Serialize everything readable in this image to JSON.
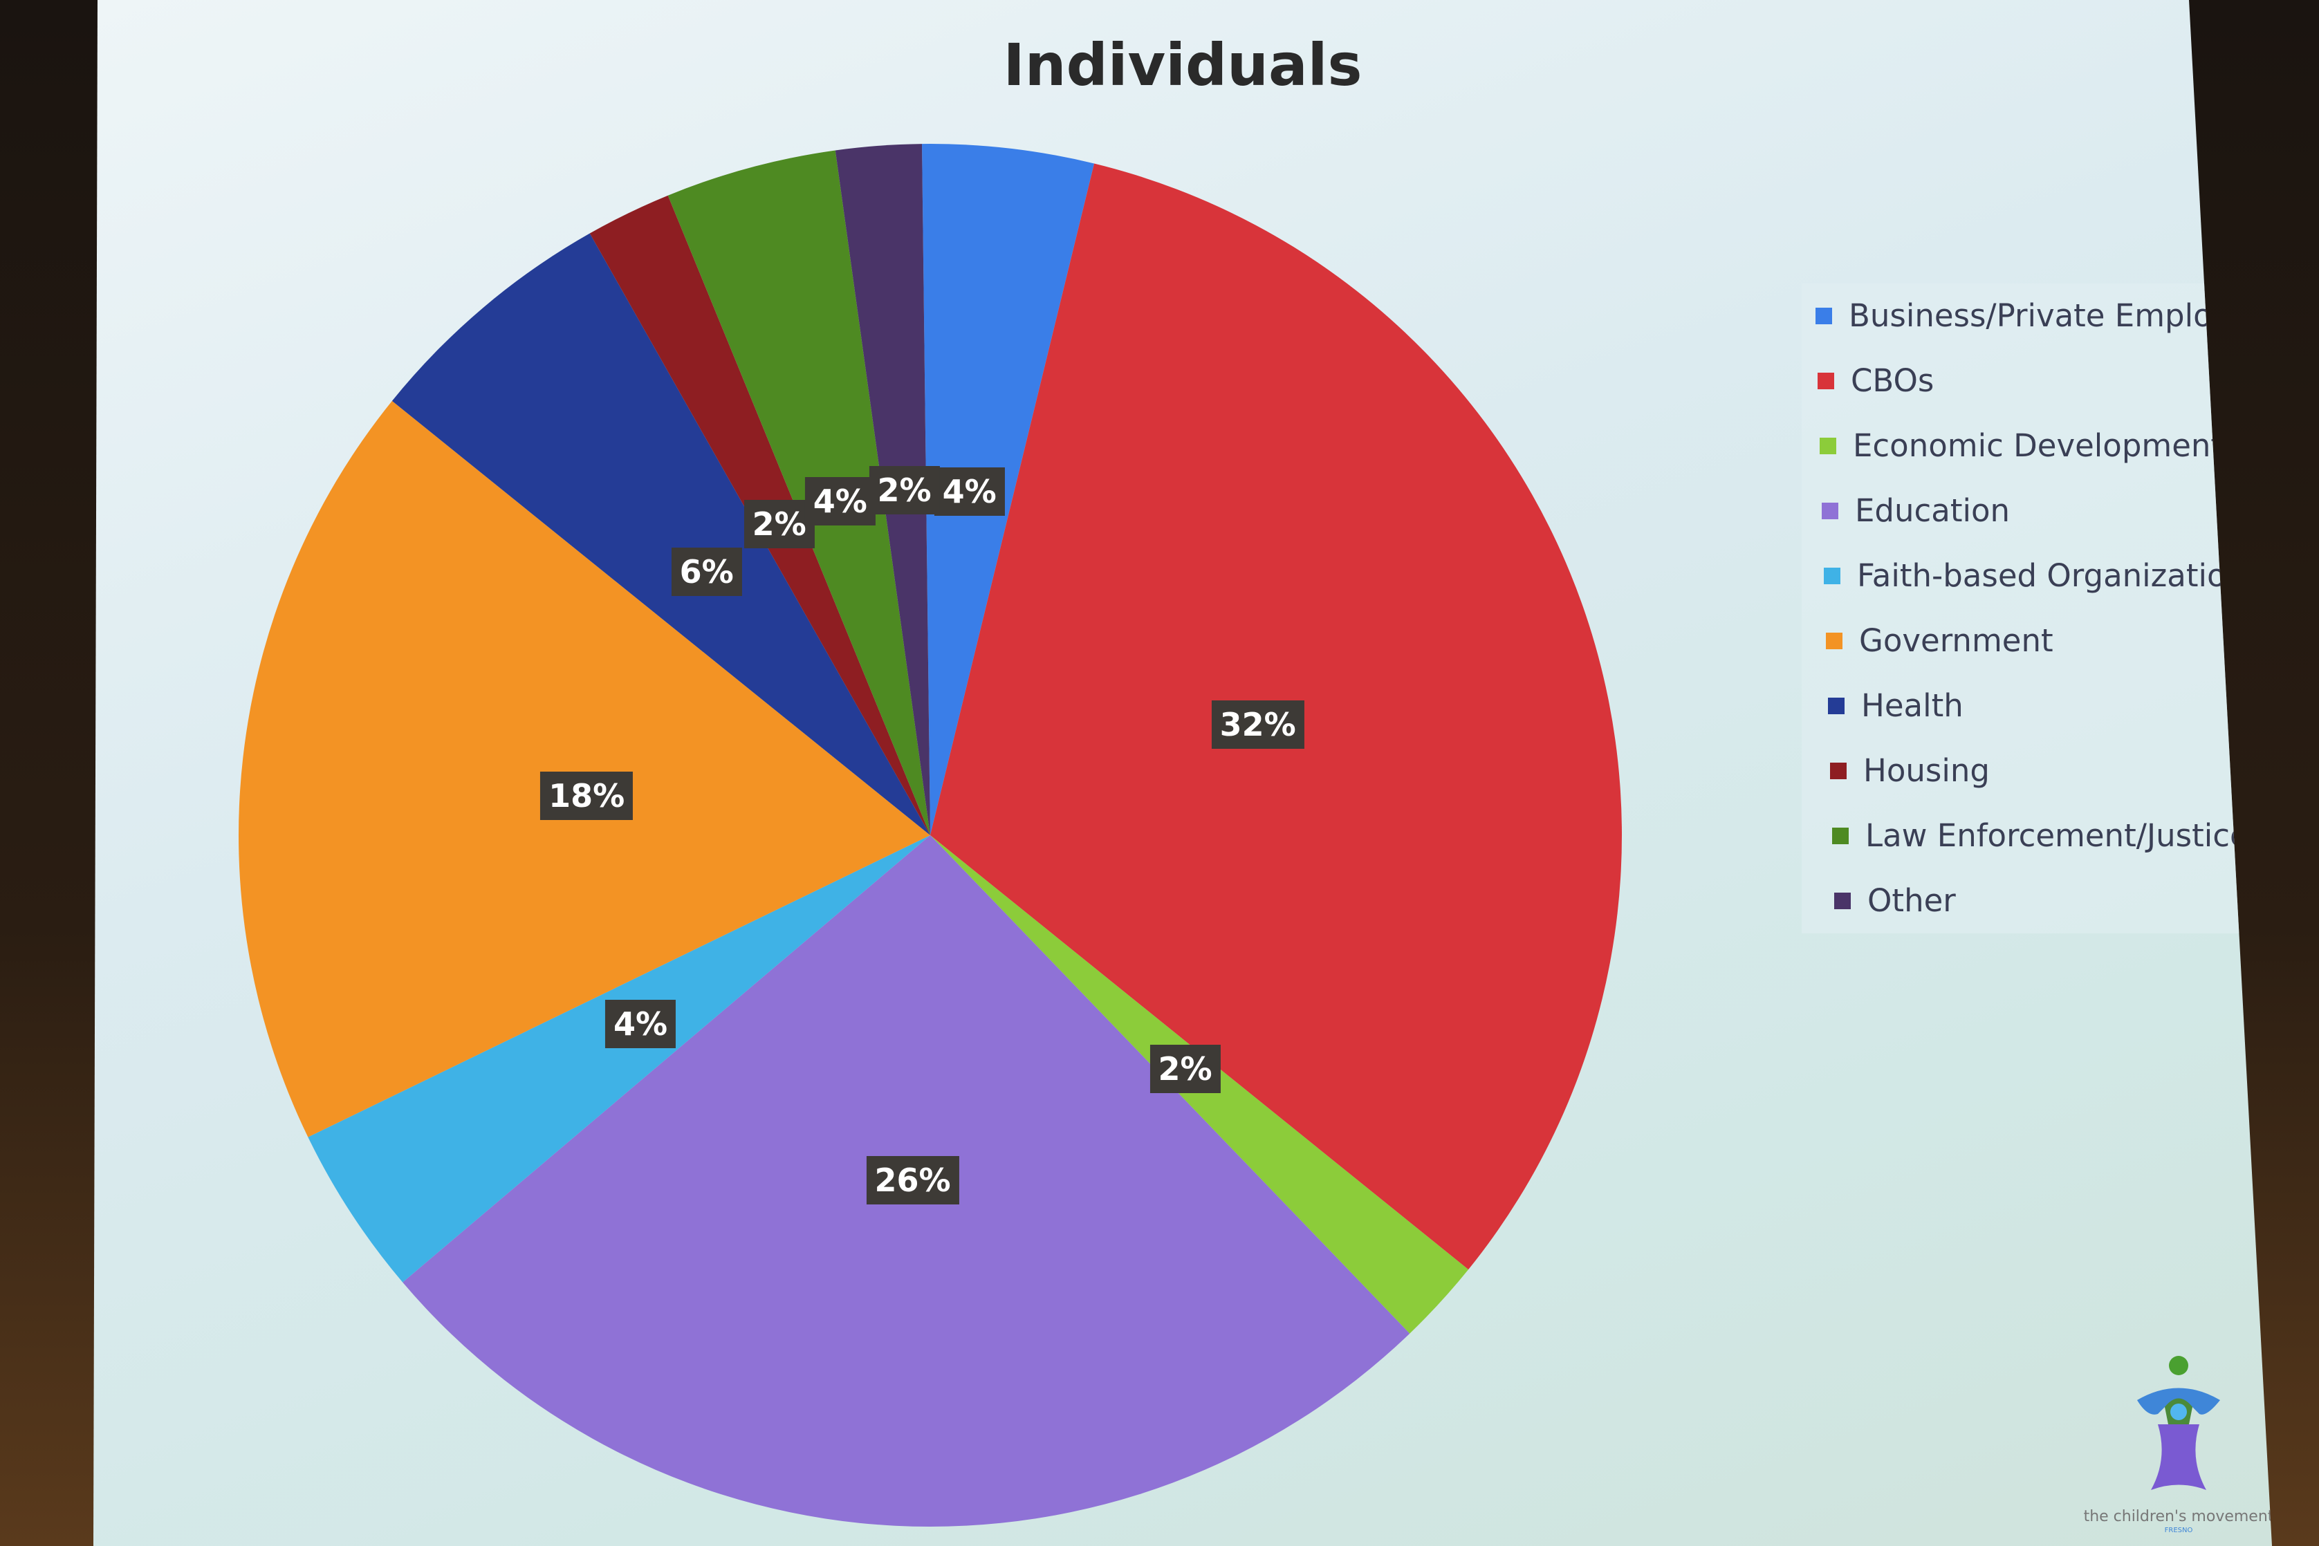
{
  "chart_data": {
    "type": "pie",
    "title": "Individuals",
    "legend_position": "right",
    "categories": [
      "Business/Private Employer",
      "CBOs",
      "Economic Development",
      "Education",
      "Faith-based Organizations",
      "Government",
      "Health",
      "Housing",
      "Law Enforcement/Justice",
      "Other"
    ],
    "values": [
      4,
      32,
      2,
      26,
      4,
      18,
      6,
      2,
      4,
      2
    ],
    "data_labels": [
      "4%",
      "32%",
      "2%",
      "26%",
      "4%",
      "18%",
      "6%",
      "2%",
      "4%",
      "2%"
    ],
    "colors": [
      "#3a7ee8",
      "#d8343a",
      "#8ccc3a",
      "#8f72d6",
      "#3fb2e6",
      "#f39324",
      "#243c96",
      "#8e1e22",
      "#4e8a22",
      "#4a3468"
    ]
  },
  "logo": {
    "text": "the children's movement",
    "subtext": "FRESNO"
  }
}
